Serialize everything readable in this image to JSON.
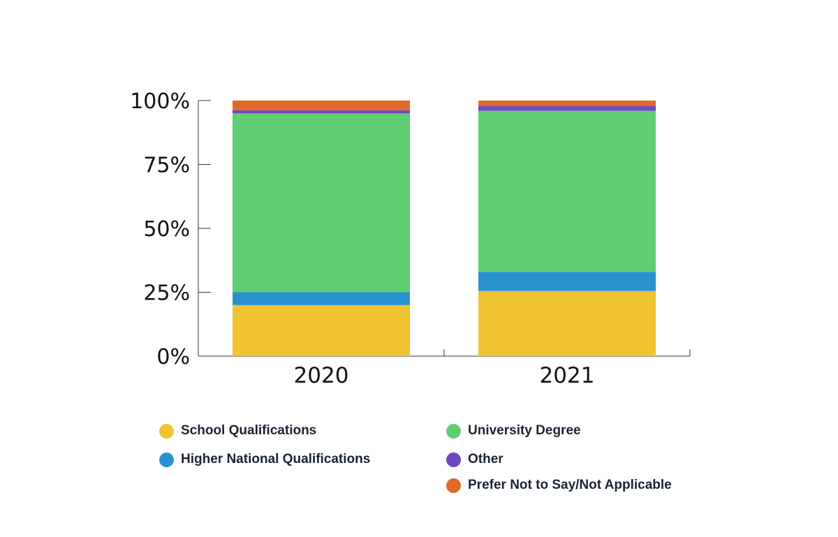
{
  "chart_data": {
    "type": "bar",
    "stacked": true,
    "categories": [
      "2020",
      "2021"
    ],
    "ylim": [
      0,
      100
    ],
    "yticks": [
      0,
      25,
      50,
      75,
      100
    ],
    "ytick_labels": [
      "0%",
      "25%",
      "50%",
      "75%",
      "100%"
    ],
    "grid": false,
    "legend_position": "bottom",
    "series": [
      {
        "name": "School Qualifications",
        "color": "#f0c330",
        "values": [
          20,
          25.5
        ]
      },
      {
        "name": "Higher National Qualifications",
        "color": "#2a91d0",
        "values": [
          5,
          7.5
        ]
      },
      {
        "name": "University Degree",
        "color": "#5fce72",
        "values": [
          70,
          63
        ]
      },
      {
        "name": "Other",
        "color": "#7048c0",
        "values": [
          1.2,
          2
        ]
      },
      {
        "name": "Prefer Not to Say/Not Applicable",
        "color": "#e06a28",
        "values": [
          3.8,
          2
        ]
      }
    ]
  }
}
